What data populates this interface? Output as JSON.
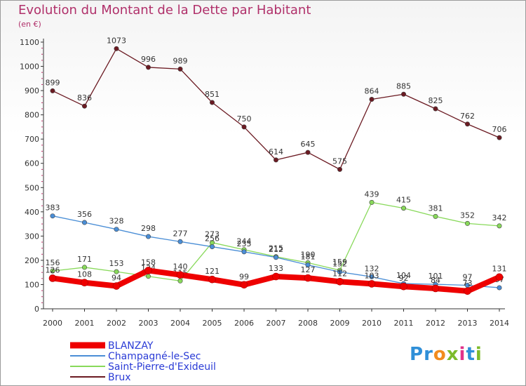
{
  "header": {
    "title": "Evolution du Montant de la Dette par Habitant",
    "unit": "(en €)"
  },
  "logo": {
    "text": "Proxiti",
    "letters": [
      "P",
      "r",
      "o",
      "x",
      "i",
      "t",
      "i"
    ],
    "colors": [
      "#2f8fd8",
      "#2f8fd8",
      "#f28c1e",
      "#7dbb2a",
      "#e2328a",
      "#2f8fd8",
      "#7dbb2a"
    ]
  },
  "chart_data": {
    "type": "line",
    "title": "Evolution du Montant de la Dette par Habitant",
    "ylabel": "(en €)",
    "xlabel": "",
    "x": [
      "2000",
      "2001",
      "2002",
      "2003",
      "2004",
      "2005",
      "2006",
      "2007",
      "2008",
      "2009",
      "2010",
      "2011",
      "2012",
      "2013",
      "2014"
    ],
    "ylim": [
      0,
      1100
    ],
    "yticks": [
      0,
      100,
      200,
      300,
      400,
      500,
      600,
      700,
      800,
      900,
      1000,
      1100
    ],
    "grid": false,
    "legend_position": "bottom-left",
    "series": [
      {
        "name": "Brux",
        "color": "#6b1a22",
        "values": [
          899,
          836,
          1073,
          996,
          989,
          851,
          750,
          614,
          645,
          575,
          864,
          885,
          825,
          762,
          706
        ]
      },
      {
        "name": "Saint-Pierre-d'Exideuil",
        "color": "#88d95a",
        "values": [
          156,
          171,
          153,
          134,
          115,
          273,
          244,
          215,
          190,
          159,
          439,
          415,
          381,
          352,
          342
        ]
      },
      {
        "name": "Champagné-le-Sec",
        "color": "#4a8ed6",
        "values": [
          383,
          356,
          328,
          298,
          277,
          256,
          235,
          212,
          181,
          152,
          132,
          104,
          101,
          97,
          87
        ]
      },
      {
        "name": "BLANZAY",
        "color": "#ee0000",
        "values": [
          126,
          108,
          94,
          158,
          140,
          121,
          99,
          133,
          127,
          112,
          103,
          92,
          84,
          73,
          131
        ]
      }
    ],
    "legend_order": [
      "BLANZAY",
      "Champagné-le-Sec",
      "Saint-Pierre-d'Exideuil",
      "Brux"
    ]
  }
}
